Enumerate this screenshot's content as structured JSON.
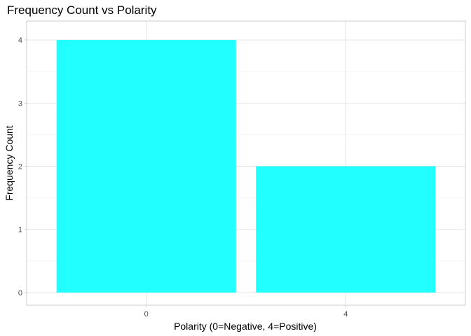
{
  "chart_data": {
    "type": "bar",
    "title": "Frequency Count vs Polarity",
    "xlabel": "Polarity (0=Negative, 4=Positive)",
    "ylabel": "Frequency Count",
    "categories": [
      "0",
      "4"
    ],
    "values": [
      4,
      2
    ],
    "ylim": [
      -0.2,
      4.3
    ],
    "yticks": [
      0,
      1,
      2,
      3,
      4
    ],
    "bar_color": "#22ffff",
    "grid": true,
    "legend": "none"
  }
}
